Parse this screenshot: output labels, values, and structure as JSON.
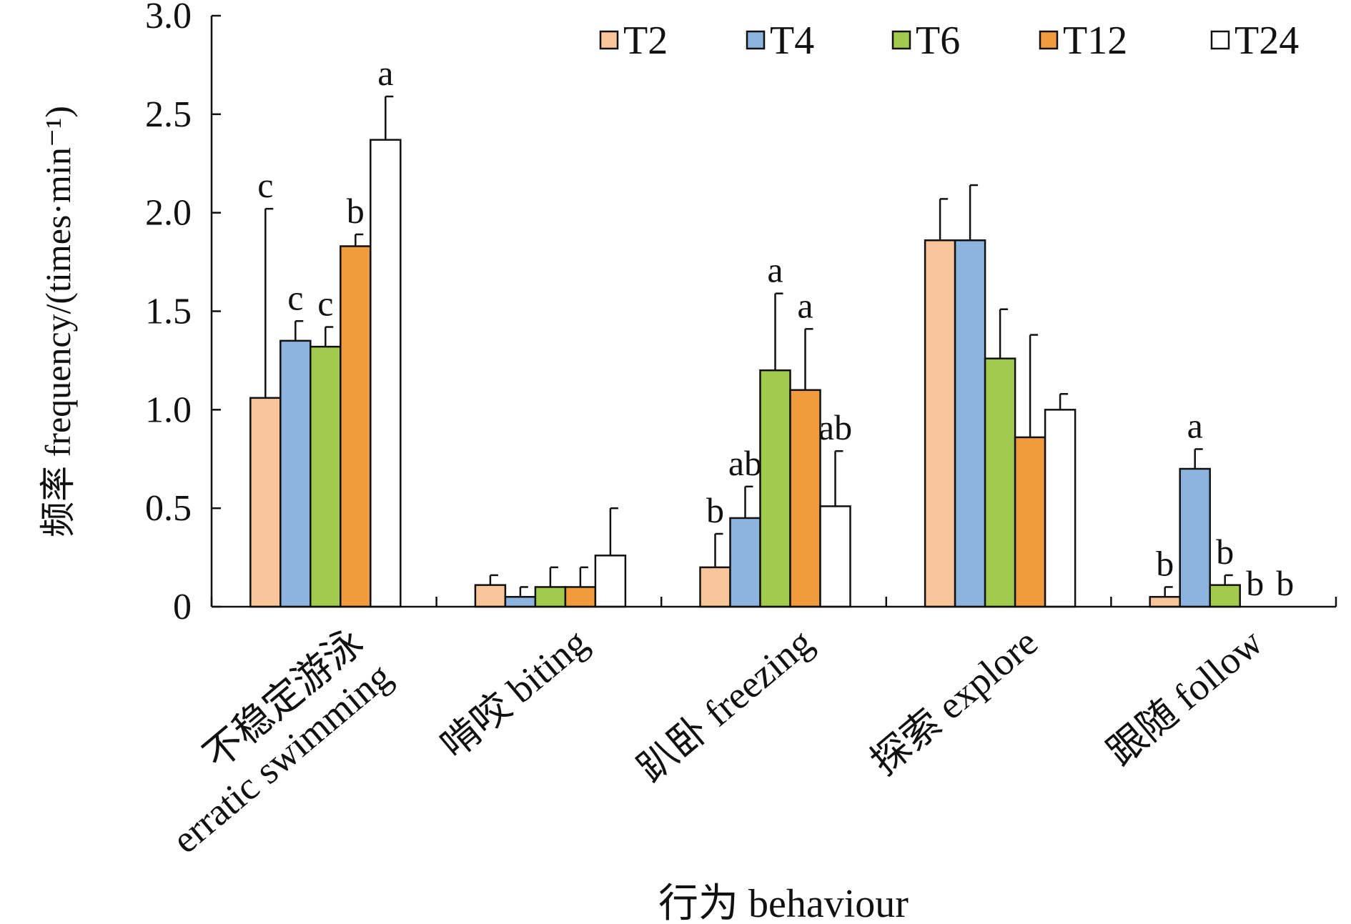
{
  "chart_data": {
    "type": "bar",
    "ylabel": "频率 frequency/(times·min⁻¹)",
    "xlabel": "行为 behaviour",
    "ylim": [
      0,
      3.0
    ],
    "yticks": [
      "0",
      "0.5",
      "1.0",
      "1.5",
      "2.0",
      "2.5",
      "3.0"
    ],
    "ytick_values": [
      0,
      0.5,
      1.0,
      1.5,
      2.0,
      2.5,
      3.0
    ],
    "legend_position": "top-right",
    "grid": false,
    "categories": [
      [
        "不稳定游泳",
        "erratic swimming"
      ],
      [
        "啃咬 biting"
      ],
      [
        "趴卧 freezing"
      ],
      [
        "探索 explore"
      ],
      [
        "跟随 follow"
      ]
    ],
    "series": [
      {
        "name": "T2",
        "color": "#F8C49A",
        "values": [
          1.06,
          0.11,
          0.2,
          1.86,
          0.05
        ],
        "errors": [
          0.96,
          0.05,
          0.17,
          0.21,
          0.05
        ],
        "letters": [
          "c",
          "",
          "b",
          "",
          "b"
        ]
      },
      {
        "name": "T4",
        "color": "#8DB4DE",
        "values": [
          1.35,
          0.05,
          0.45,
          1.86,
          0.7
        ],
        "errors": [
          0.1,
          0.05,
          0.16,
          0.28,
          0.1
        ],
        "letters": [
          "c",
          "",
          "ab",
          "",
          "a"
        ]
      },
      {
        "name": "T6",
        "color": "#A2CB4E",
        "values": [
          1.32,
          0.1,
          1.2,
          1.26,
          0.11
        ],
        "errors": [
          0.1,
          0.1,
          0.39,
          0.25,
          0.05
        ],
        "letters": [
          "c",
          "",
          "a",
          "",
          "b"
        ]
      },
      {
        "name": "T12",
        "color": "#F29B3E",
        "values": [
          1.83,
          0.1,
          1.1,
          0.86,
          0.0
        ],
        "errors": [
          0.06,
          0.1,
          0.31,
          0.52,
          0.0
        ],
        "letters": [
          "b",
          "",
          "a",
          "",
          "b"
        ]
      },
      {
        "name": "T24",
        "color": "#FFFFFF",
        "values": [
          2.37,
          0.26,
          0.51,
          1.0,
          0.0
        ],
        "errors": [
          0.22,
          0.24,
          0.28,
          0.08,
          0.0
        ],
        "letters": [
          "a",
          "",
          "ab",
          "",
          "b"
        ]
      }
    ]
  }
}
